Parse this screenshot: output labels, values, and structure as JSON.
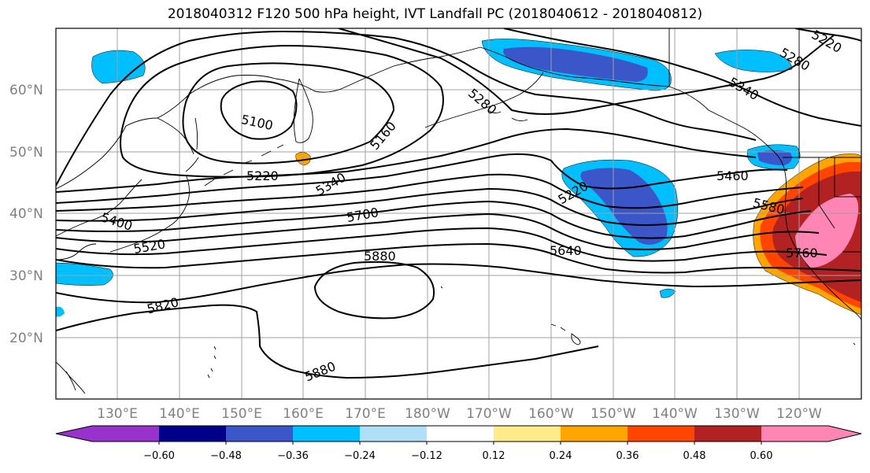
{
  "title": "2018040312 F120 500 hPa height, IVT Landfall PC (2018040612 - 2018040812)",
  "map": {
    "lat_ticks": [
      "60°N",
      "50°N",
      "40°N",
      "30°N",
      "20°N"
    ],
    "lon_ticks": [
      "130°E",
      "140°E",
      "150°E",
      "160°E",
      "170°E",
      "180°W",
      "170°W",
      "160°W",
      "150°W",
      "140°W",
      "130°W",
      "120°W"
    ],
    "contour_labels": [
      "5100",
      "5160",
      "5220",
      "5280",
      "5340",
      "5340",
      "5220",
      "5280",
      "5460",
      "5580",
      "5700",
      "5640",
      "5760",
      "5400",
      "5520",
      "5820",
      "5880",
      "5880",
      "5220"
    ],
    "land_color": "#ffffff",
    "gridline_color": "#a0a0a0"
  },
  "colorbar": {
    "tick_labels": [
      "−0.60",
      "−0.48",
      "−0.36",
      "−0.24",
      "−0.12",
      "0.12",
      "0.24",
      "0.36",
      "0.48",
      "0.60"
    ],
    "colors": [
      "#9932cc",
      "#00008b",
      "#3a56c8",
      "#00bfff",
      "#b0e0f8",
      "#ffffff",
      "#ffeb8a",
      "#ffa500",
      "#ff4500",
      "#b22222",
      "#ff85b4"
    ],
    "levels": [
      -0.6,
      -0.48,
      -0.36,
      -0.24,
      -0.12,
      0.12,
      0.24,
      0.36,
      0.48,
      0.6
    ]
  }
}
